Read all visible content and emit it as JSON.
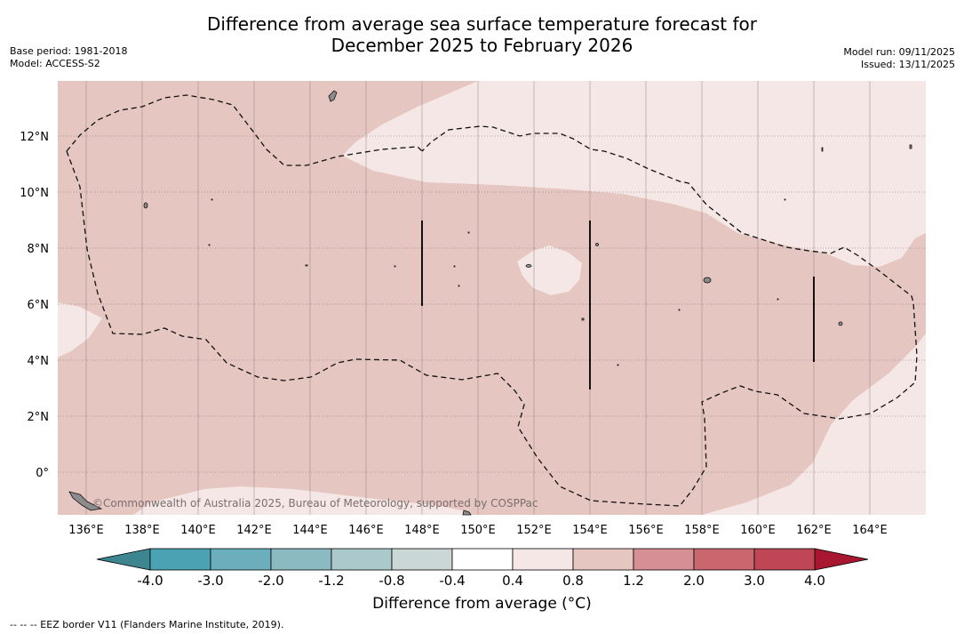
{
  "header": {
    "title_line1": "Difference from average sea surface temperature forecast for",
    "title_line2": "December 2025 to February 2026",
    "base_period": "Base period: 1981-2018",
    "model": "Model: ACCESS-S2",
    "model_run": "Model run: 09/11/2025",
    "issued": "Issued: 13/11/2025"
  },
  "map": {
    "lon_labels": [
      "136°E",
      "138°E",
      "140°E",
      "142°E",
      "144°E",
      "146°E",
      "148°E",
      "150°E",
      "152°E",
      "154°E",
      "156°E",
      "158°E",
      "160°E",
      "162°E",
      "164°E"
    ],
    "lat_labels": [
      "12°N",
      "10°N",
      "8°N",
      "6°N",
      "4°N",
      "2°N",
      "0°"
    ],
    "lon_range": [
      135,
      166
    ],
    "lat_range": [
      -1.5,
      14
    ],
    "attribution": "©Commonwealth of Australia 2025, Bureau of Meteorology, supported by COSPPac",
    "colors": {
      "anomaly_0_8_to_1_2": "#e6c6c1",
      "anomaly_0_4_to_0_8": "#f5e7e5",
      "land": "#8c8c8c"
    }
  },
  "colorbar": {
    "ticks": [
      "-4.0",
      "-3.0",
      "-2.0",
      "-1.2",
      "-0.8",
      "-0.4",
      "0.4",
      "0.8",
      "1.2",
      "2.0",
      "3.0",
      "4.0"
    ],
    "colors": [
      "#4aa2b3",
      "#6caebb",
      "#8cbac3",
      "#abc8cb",
      "#cbd7d6",
      "#ffffff",
      "#f5e7e5",
      "#e6c6c1",
      "#d69095",
      "#c9666e",
      "#bf4655"
    ],
    "extend_low_color": "#3d8690",
    "extend_high_color": "#a8172f",
    "label": "Difference from average (°C)"
  },
  "footnote": "--  --  -- EEZ border V11 (Flanders Marine Institute, 2019)."
}
